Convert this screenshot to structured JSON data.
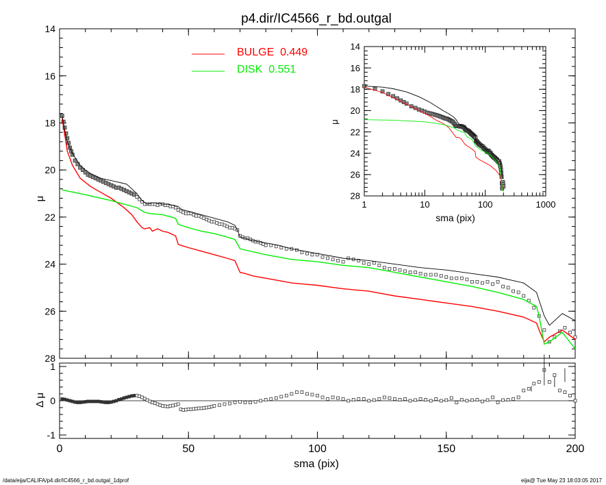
{
  "colors": {
    "bulge": "#ff0000",
    "disk": "#00ee00",
    "model": "#000000",
    "data": "#444444"
  },
  "footer": {
    "left": "/data/eija/CALIFA/p4.dir/IC4566_r_bd.outgal_1dprof",
    "right": "eija@  Tue May 23 18:03:05 2017"
  },
  "chart_data": [
    {
      "type": "line",
      "panel": "main",
      "title": "p4.dir/IC4566_r_bd.outgal",
      "xlabel": "",
      "ylabel": "μ",
      "xlim": [
        0,
        200
      ],
      "ylim": [
        28,
        14
      ],
      "y_reversed": true,
      "yticks": [
        14,
        16,
        18,
        20,
        22,
        24,
        26,
        28
      ],
      "xticks": [
        0,
        50,
        100,
        150,
        200
      ],
      "legend": {
        "position": "top-center",
        "entries": [
          {
            "name": "BULGE",
            "value": "0.449",
            "color": "#ff0000"
          },
          {
            "name": "DISK",
            "value": "0.551",
            "color": "#00ee00"
          }
        ]
      },
      "series": [
        {
          "name": "BULGE",
          "color": "#ff0000",
          "x": [
            1,
            3,
            5,
            8,
            12,
            16,
            20,
            25,
            28,
            30,
            32,
            33,
            35,
            36,
            38,
            40,
            42,
            45,
            46,
            47,
            50,
            55,
            60,
            65,
            68,
            69,
            70,
            72,
            75,
            80,
            85,
            90,
            95,
            100,
            110,
            120,
            130,
            140,
            150,
            160,
            170,
            180,
            185,
            186,
            188,
            190,
            195,
            200
          ],
          "y": [
            17.8,
            19.2,
            19.8,
            20.35,
            20.7,
            20.95,
            21.2,
            21.6,
            21.9,
            22.2,
            22.45,
            22.5,
            22.45,
            22.6,
            22.5,
            22.6,
            22.65,
            22.8,
            23.15,
            23.2,
            23.3,
            23.45,
            23.6,
            23.75,
            23.85,
            24.1,
            24.35,
            24.4,
            24.5,
            24.6,
            24.7,
            24.8,
            24.85,
            24.9,
            25.05,
            25.15,
            25.35,
            25.5,
            25.65,
            25.8,
            26.0,
            26.25,
            26.5,
            26.8,
            27.3,
            27.1,
            26.8,
            27.2
          ]
        },
        {
          "name": "DISK",
          "color": "#00ee00",
          "x": [
            1,
            10,
            20,
            30,
            33,
            35,
            40,
            45,
            46,
            47,
            50,
            55,
            60,
            65,
            68,
            69,
            70,
            72,
            80,
            90,
            100,
            110,
            120,
            130,
            140,
            150,
            160,
            170,
            180,
            185,
            186,
            188,
            190,
            195,
            200
          ],
          "y": [
            20.85,
            21.05,
            21.3,
            21.6,
            21.8,
            21.85,
            21.9,
            22.05,
            22.3,
            22.35,
            22.45,
            22.6,
            22.7,
            22.85,
            22.95,
            23.15,
            23.35,
            23.4,
            23.6,
            23.8,
            23.9,
            24.05,
            24.15,
            24.35,
            24.55,
            24.75,
            24.95,
            25.2,
            25.5,
            25.8,
            26.2,
            27.4,
            27.3,
            26.9,
            27.6
          ]
        },
        {
          "name": "",
          "color": "#000000",
          "x": [
            1,
            2,
            3,
            5,
            8,
            10,
            12,
            14,
            16,
            18,
            20,
            22,
            24,
            26,
            28,
            30,
            32,
            34,
            36,
            38,
            40,
            42,
            44,
            46,
            47,
            48,
            50,
            55,
            60,
            65,
            68,
            69,
            70,
            72,
            75,
            80,
            85,
            90,
            95,
            100,
            105,
            110,
            120,
            130,
            140,
            150,
            160,
            170,
            180,
            185,
            188,
            190,
            195,
            200
          ],
          "y": [
            17.7,
            18.3,
            18.8,
            19.3,
            19.8,
            20.0,
            20.15,
            20.25,
            20.35,
            20.4,
            20.45,
            20.5,
            20.55,
            20.6,
            20.8,
            21.0,
            21.3,
            21.45,
            21.4,
            21.4,
            21.45,
            21.45,
            21.5,
            21.55,
            21.65,
            21.7,
            21.75,
            21.9,
            22.05,
            22.2,
            22.35,
            22.55,
            22.85,
            22.9,
            23.0,
            23.1,
            23.2,
            23.35,
            23.45,
            23.55,
            23.65,
            23.75,
            23.85,
            24.0,
            24.15,
            24.25,
            24.4,
            24.55,
            24.8,
            25.2,
            26.2,
            26.6,
            26.1,
            26.4
          ]
        }
      ],
      "data_points": {
        "x": [
          1,
          1.5,
          2,
          2.5,
          3,
          3.5,
          4,
          4.5,
          5,
          6,
          7,
          8,
          9,
          10,
          11,
          12,
          13,
          14,
          15,
          16,
          17,
          18,
          19,
          20,
          21,
          22,
          23,
          24,
          25,
          26,
          27,
          28,
          29,
          30,
          31,
          32,
          33,
          34,
          35,
          36,
          37,
          38,
          39,
          40,
          41,
          42,
          43,
          44,
          45,
          46,
          47,
          48,
          49,
          50,
          51,
          52,
          53,
          54,
          55,
          56,
          57,
          58,
          59,
          60,
          61,
          62,
          63,
          64,
          65,
          66,
          67,
          68,
          69,
          70,
          71,
          72,
          73,
          74,
          75,
          76,
          77,
          78,
          79,
          80,
          82,
          84,
          86,
          88,
          90,
          92,
          94,
          96,
          98,
          100,
          102,
          104,
          106,
          108,
          110,
          112,
          114,
          116,
          118,
          120,
          122,
          124,
          126,
          128,
          130,
          132,
          134,
          136,
          138,
          140,
          142,
          144,
          146,
          148,
          150,
          152,
          154,
          156,
          158,
          160,
          162,
          164,
          166,
          168,
          170,
          172,
          174,
          176,
          178,
          180,
          182,
          184,
          186,
          188,
          190,
          192,
          194,
          196,
          198,
          200
        ],
        "y": [
          17.7,
          17.95,
          18.2,
          18.45,
          18.65,
          18.85,
          19.05,
          19.2,
          19.35,
          19.6,
          19.75,
          19.9,
          20.0,
          20.1,
          20.2,
          20.25,
          20.3,
          20.35,
          20.4,
          20.45,
          20.5,
          20.55,
          20.6,
          20.65,
          20.7,
          20.75,
          20.75,
          20.8,
          20.85,
          20.9,
          20.95,
          21.0,
          21.05,
          21.15,
          21.25,
          21.35,
          21.45,
          21.45,
          21.45,
          21.45,
          21.45,
          21.5,
          21.45,
          21.45,
          21.5,
          21.5,
          21.55,
          21.55,
          21.6,
          21.7,
          21.75,
          21.8,
          21.85,
          21.85,
          21.85,
          21.9,
          21.95,
          21.95,
          22.0,
          22.05,
          22.1,
          22.15,
          22.2,
          22.2,
          22.25,
          22.3,
          22.3,
          22.35,
          22.4,
          22.45,
          22.45,
          22.5,
          22.55,
          22.8,
          22.85,
          22.9,
          22.9,
          22.95,
          23.0,
          23.05,
          23.05,
          23.1,
          23.15,
          23.2,
          23.2,
          23.25,
          23.3,
          23.35,
          23.35,
          23.4,
          23.5,
          23.55,
          23.6,
          23.6,
          23.7,
          23.75,
          23.8,
          23.85,
          23.9,
          23.75,
          23.8,
          23.85,
          23.95,
          24.0,
          23.95,
          24.05,
          24.15,
          24.2,
          24.2,
          24.25,
          24.3,
          24.35,
          24.35,
          24.4,
          24.45,
          24.45,
          24.45,
          24.5,
          24.55,
          24.6,
          24.6,
          24.6,
          24.65,
          24.75,
          24.75,
          24.8,
          24.75,
          24.85,
          24.75,
          24.95,
          25.0,
          25.15,
          25.2,
          25.35,
          25.55,
          25.85,
          26.2,
          26.8,
          27.3,
          27.1,
          26.85,
          26.7,
          26.9,
          27.1
        ]
      },
      "annotations": [
        "BULGE  0.449",
        "DISK  0.551"
      ]
    },
    {
      "type": "scatter",
      "panel": "residual",
      "xlabel": "sma (pix)",
      "ylabel": "Δ μ",
      "xlim": [
        0,
        200
      ],
      "ylim": [
        -1.1,
        1.1
      ],
      "yticks": [
        -1,
        0,
        1
      ],
      "xticks": [
        0,
        50,
        100,
        150,
        200
      ],
      "points": {
        "x": [
          1,
          2,
          3,
          4,
          5,
          6,
          7,
          8,
          9,
          10,
          11,
          12,
          13,
          14,
          15,
          16,
          17,
          18,
          19,
          20,
          21,
          22,
          23,
          24,
          25,
          26,
          27,
          28,
          29,
          30,
          31,
          32,
          33,
          34,
          35,
          36,
          37,
          38,
          39,
          40,
          41,
          42,
          43,
          44,
          45,
          46,
          47,
          48,
          49,
          50,
          51,
          52,
          53,
          54,
          55,
          56,
          57,
          58,
          59,
          60,
          62,
          64,
          66,
          68,
          70,
          72,
          74,
          76,
          78,
          80,
          82,
          84,
          86,
          88,
          90,
          92,
          94,
          96,
          98,
          100,
          102,
          104,
          106,
          108,
          110,
          112,
          114,
          116,
          118,
          120,
          122,
          124,
          126,
          128,
          130,
          132,
          134,
          136,
          138,
          140,
          142,
          144,
          146,
          148,
          150,
          152,
          154,
          156,
          158,
          160,
          162,
          164,
          166,
          168,
          170,
          172,
          174,
          176,
          178,
          180,
          182,
          184,
          186,
          188,
          190,
          192,
          194,
          196,
          198,
          200
        ],
        "y": [
          0.05,
          0.04,
          0.02,
          0.0,
          -0.02,
          -0.04,
          -0.05,
          -0.05,
          -0.04,
          -0.03,
          -0.02,
          -0.02,
          -0.02,
          -0.02,
          -0.02,
          -0.03,
          -0.04,
          -0.05,
          -0.05,
          -0.04,
          -0.02,
          0.0,
          0.03,
          0.05,
          0.08,
          0.1,
          0.12,
          0.14,
          0.15,
          0.15,
          0.13,
          0.1,
          0.06,
          0.02,
          -0.02,
          -0.05,
          -0.07,
          -0.1,
          -0.13,
          -0.15,
          -0.16,
          -0.17,
          -0.15,
          -0.14,
          -0.12,
          -0.1,
          -0.25,
          -0.27,
          -0.26,
          -0.25,
          -0.25,
          -0.24,
          -0.23,
          -0.22,
          -0.22,
          -0.21,
          -0.2,
          -0.19,
          -0.17,
          -0.15,
          -0.13,
          -0.1,
          -0.08,
          -0.05,
          -0.03,
          -0.05,
          -0.05,
          -0.03,
          0.0,
          0.03,
          0.05,
          0.08,
          0.12,
          0.15,
          0.2,
          0.25,
          0.25,
          0.2,
          0.18,
          0.15,
          0.1,
          0.05,
          0.1,
          0.08,
          0.05,
          0.0,
          0.03,
          0.05,
          0.05,
          0.0,
          0.02,
          0.05,
          0.1,
          0.08,
          0.05,
          0.03,
          0.05,
          0.0,
          0.02,
          0.05,
          0.03,
          0.0,
          0.05,
          0.0,
          0.02,
          0.08,
          -0.05,
          0.03,
          0.0,
          0.02,
          0.03,
          -0.02,
          0.02,
          0.1,
          -0.05,
          0.02,
          0.03,
          0.05,
          0.1,
          0.3,
          0.35,
          0.5,
          0.55,
          0.9,
          0.55,
          0.75,
          0.3,
          0.25,
          0.15,
          0.0
        ],
        "errorbars": [
          {
            "x": 183,
            "y": 0.35,
            "err": 0.08
          },
          {
            "x": 188,
            "y": 0.9,
            "err": 0.45
          },
          {
            "x": 192,
            "y": 0.55,
            "err": 0.15
          },
          {
            "x": 196,
            "y": 0.75,
            "err": 0.2
          }
        ]
      }
    },
    {
      "type": "line",
      "panel": "inset",
      "xlabel": "sma (pix)",
      "ylabel": "μ",
      "xscale": "log",
      "xlim": [
        1,
        1000
      ],
      "ylim": [
        28,
        14
      ],
      "y_reversed": true,
      "yticks": [
        14,
        16,
        18,
        20,
        22,
        24,
        26,
        28
      ],
      "xticks": [
        1,
        10,
        100,
        1000
      ],
      "series": [
        {
          "name": "",
          "color": "#ff0000",
          "x": [
            1,
            2,
            3,
            5,
            8,
            12,
            16,
            20,
            25,
            30,
            33,
            36,
            40,
            46,
            50,
            60,
            68,
            70,
            80,
            100,
            120,
            150,
            180,
            190,
            200
          ],
          "y": [
            17.8,
            18.3,
            18.8,
            19.4,
            20.0,
            20.5,
            20.95,
            21.2,
            21.6,
            22.2,
            22.5,
            22.5,
            22.65,
            23.15,
            23.3,
            23.6,
            23.85,
            24.35,
            24.6,
            24.9,
            25.15,
            25.6,
            26.2,
            27.3,
            27.1
          ]
        },
        {
          "name": "",
          "color": "#00ee00",
          "x": [
            1,
            3,
            10,
            20,
            30,
            35,
            45,
            50,
            60,
            70,
            80,
            100,
            120,
            150,
            180,
            190,
            200
          ],
          "y": [
            20.85,
            20.9,
            21.05,
            21.3,
            21.6,
            21.85,
            22.05,
            22.45,
            22.7,
            23.35,
            23.6,
            23.9,
            24.15,
            24.75,
            25.5,
            27.4,
            27.6
          ]
        },
        {
          "name": "",
          "color": "#000000",
          "x": [
            1,
            2,
            3,
            5,
            8,
            12,
            16,
            20,
            25,
            30,
            33,
            36,
            40,
            46,
            50,
            60,
            68,
            70,
            80,
            100,
            120,
            150,
            180,
            190,
            200
          ],
          "y": [
            17.7,
            17.8,
            17.95,
            18.25,
            18.7,
            19.2,
            19.65,
            20.0,
            20.3,
            20.6,
            20.85,
            21.2,
            21.4,
            21.5,
            21.75,
            22.05,
            22.35,
            22.85,
            23.1,
            23.55,
            23.85,
            24.25,
            24.8,
            26.2,
            26.4
          ]
        }
      ]
    }
  ]
}
